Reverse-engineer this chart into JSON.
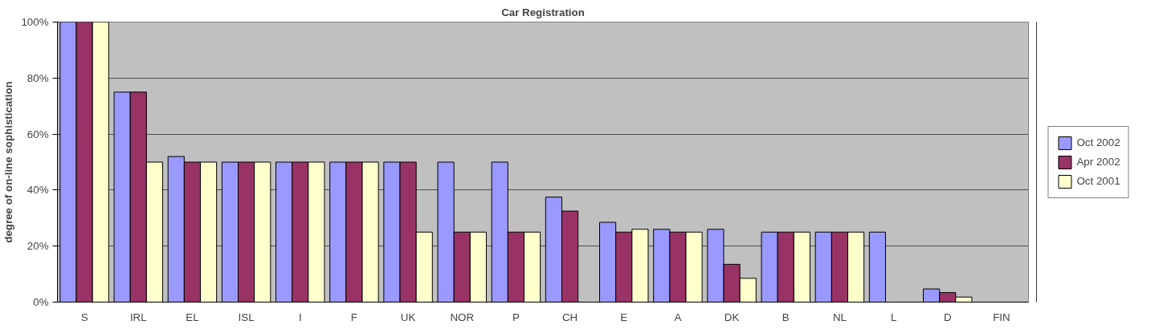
{
  "chart_data": {
    "type": "bar",
    "title": "Car Registration",
    "ylabel": "degree of on-line sophistication",
    "categories": [
      "S",
      "IRL",
      "EL",
      "ISL",
      "I",
      "F",
      "UK",
      "NOR",
      "P",
      "CH",
      "E",
      "A",
      "DK",
      "B",
      "NL",
      "L",
      "D",
      "FIN"
    ],
    "series": [
      {
        "name": "Oct 2002",
        "color": "#9999ff",
        "values": [
          100,
          75,
          52,
          50,
          50,
          50,
          50,
          50,
          50,
          37.5,
          28.5,
          26,
          26,
          25,
          25,
          25,
          4.7,
          null
        ]
      },
      {
        "name": "Apr 2002",
        "color": "#993366",
        "values": [
          100,
          75,
          50,
          50,
          50,
          50,
          50,
          25,
          25,
          32.5,
          25,
          25,
          13.5,
          25,
          25,
          null,
          3.4,
          null
        ]
      },
      {
        "name": "Oct 2001",
        "color": "#ffffcc",
        "values": [
          100,
          50,
          50,
          50,
          50,
          50,
          25,
          25,
          25,
          null,
          26,
          25,
          8.5,
          25,
          25,
          null,
          1.8,
          null
        ]
      }
    ],
    "ylim": [
      0,
      100
    ],
    "yticks": [
      {
        "value": 0,
        "label": "0%"
      },
      {
        "value": 20,
        "label": "20%"
      },
      {
        "value": 40,
        "label": "40%"
      },
      {
        "value": 60,
        "label": "60%"
      },
      {
        "value": 80,
        "label": "80%"
      },
      {
        "value": 100,
        "label": "100%"
      }
    ],
    "grid": "y",
    "legend": "right"
  }
}
